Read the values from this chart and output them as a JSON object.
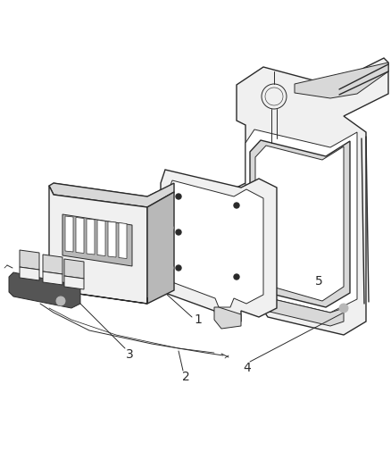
{
  "background_color": "#ffffff",
  "line_color": "#2a2a2a",
  "label_color": "#000000",
  "fig_width": 4.38,
  "fig_height": 5.33,
  "dpi": 100,
  "label_fontsize": 10,
  "lw_main": 1.0,
  "lw_thin": 0.7,
  "lw_dash": 0.7,
  "gray_light": "#f0f0f0",
  "gray_mid": "#d8d8d8",
  "gray_dark": "#b8b8b8",
  "white": "#ffffff"
}
